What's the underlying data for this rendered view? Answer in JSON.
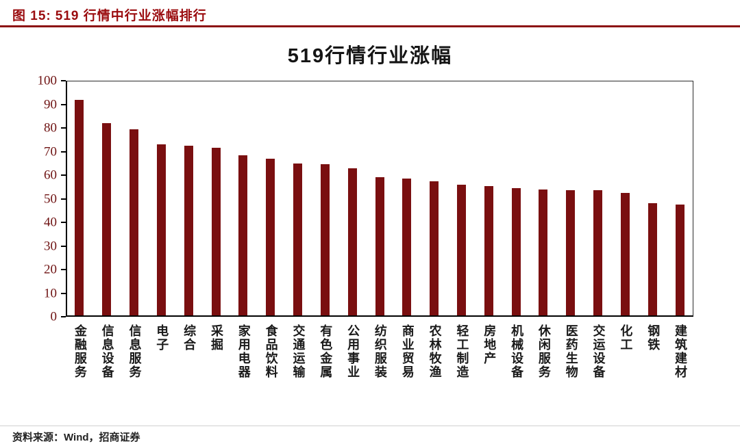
{
  "header": {
    "figure_label": "图 15:",
    "figure_title": "519 行情中行业涨幅排行"
  },
  "chart_data": {
    "type": "bar",
    "title": "519行情行业涨幅",
    "xlabel": "",
    "ylabel": "",
    "ylim": [
      0,
      100
    ],
    "ytick_step": 10,
    "grid": false,
    "legend": "none",
    "bar_color": "#7a0f10",
    "categories": [
      "金融服务",
      "信息设备",
      "信息服务",
      "电子",
      "综合",
      "采掘",
      "家用电器",
      "食品饮料",
      "交通运输",
      "有色金属",
      "公用事业",
      "纺织服装",
      "商业贸易",
      "农林牧渔",
      "轻工制造",
      "房地产",
      "机械设备",
      "休闲服务",
      "医药生物",
      "交运设备",
      "化工",
      "钢铁",
      "建筑建材"
    ],
    "values": [
      92,
      82,
      79.5,
      73,
      72.5,
      71.5,
      68.5,
      67,
      65,
      64.5,
      63,
      59,
      58.5,
      57.5,
      56,
      55.5,
      54.5,
      54,
      53.5,
      53.5,
      52.5,
      48,
      47.5
    ]
  },
  "footer": {
    "source": "资料来源：Wind，招商证券"
  },
  "colors": {
    "accent": "#8c0e10",
    "bar": "#7a0f10"
  }
}
